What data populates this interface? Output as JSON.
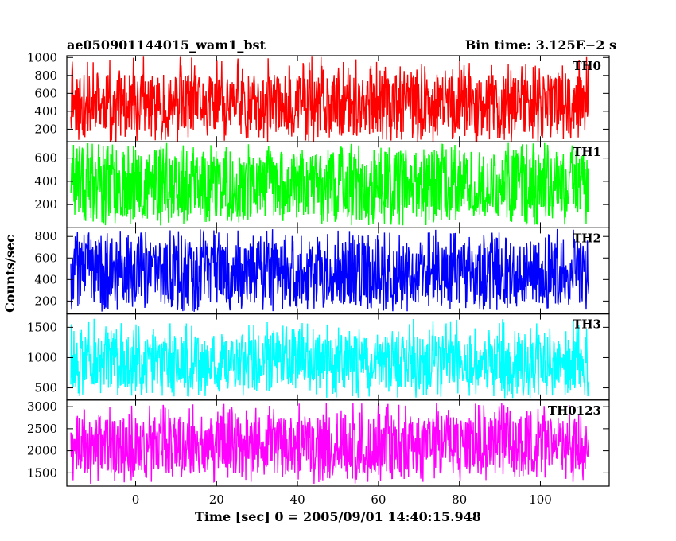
{
  "chart_data": {
    "type": "line",
    "title": "ae050901144015_wam1_bst",
    "subtitle": "Bin time: 3.125E−2 s",
    "xlabel": "Time [sec] 0 = 2005/09/01 14:40:15.948",
    "ylabel": "Counts/sec",
    "xlim": [
      -17,
      117
    ],
    "x_ticks": [
      0,
      20,
      40,
      60,
      80,
      100
    ],
    "x_tick_labels": [
      "0",
      "20",
      "40",
      "60",
      "80",
      "100"
    ],
    "data_x_range": [
      -16,
      112
    ],
    "grid": false,
    "panels": [
      {
        "name": "TH0",
        "color": "#ff0000",
        "ylim": [
          60,
          1020
        ],
        "y_ticks": [
          200,
          400,
          600,
          800,
          1000
        ],
        "y_tick_labels": [
          "200",
          "400",
          "600",
          "800",
          "1000"
        ],
        "mean": 480,
        "band": [
          160,
          810
        ],
        "spike_range": [
          60,
          1010
        ],
        "seed": 11
      },
      {
        "name": "TH1",
        "color": "#00ff00",
        "ylim": [
          0,
          740
        ],
        "y_ticks": [
          200,
          400,
          600
        ],
        "y_tick_labels": [
          "200",
          "400",
          "600"
        ],
        "mean": 380,
        "band": [
          90,
          660
        ],
        "spike_range": [
          20,
          730
        ],
        "seed": 23
      },
      {
        "name": "TH2",
        "color": "#0000ff",
        "ylim": [
          80,
          880
        ],
        "y_ticks": [
          200,
          400,
          600,
          800
        ],
        "y_tick_labels": [
          "200",
          "400",
          "600",
          "800"
        ],
        "mean": 470,
        "band": [
          170,
          760
        ],
        "spike_range": [
          100,
          870
        ],
        "seed": 37
      },
      {
        "name": "TH3",
        "color": "#00ffff",
        "ylim": [
          300,
          1720
        ],
        "y_ticks": [
          500,
          1000,
          1500
        ],
        "y_tick_labels": [
          "500",
          "1000",
          "1500"
        ],
        "mean": 900,
        "band": [
          480,
          1380
        ],
        "spike_range": [
          330,
          1650
        ],
        "seed": 53
      },
      {
        "name": "TH0123",
        "color": "#ff00ff",
        "ylim": [
          1200,
          3150
        ],
        "y_ticks": [
          1500,
          2000,
          2500,
          3000
        ],
        "y_tick_labels": [
          "1500",
          "2000",
          "2500",
          "3000"
        ],
        "mean": 2100,
        "band": [
          1480,
          2780
        ],
        "spike_range": [
          1250,
          3080
        ],
        "seed": 71
      }
    ]
  }
}
